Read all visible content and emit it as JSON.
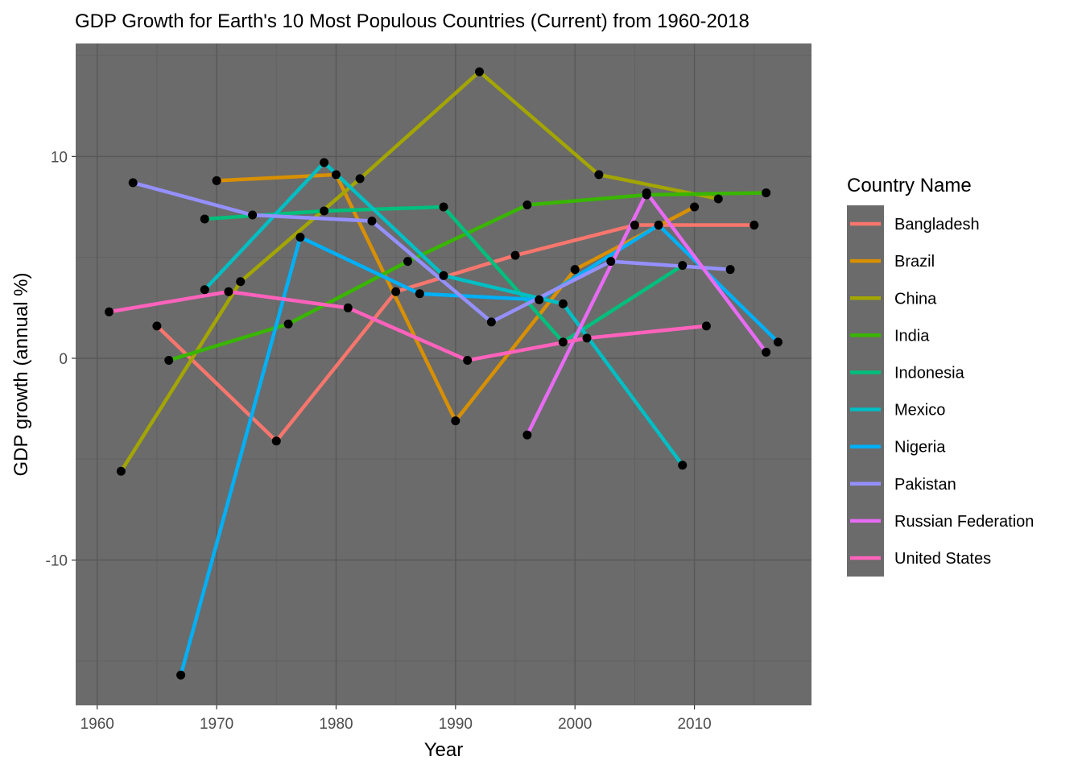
{
  "chart_data": {
    "type": "line",
    "title": "GDP Growth for Earth's 10 Most Populous Countries (Current) from 1960-2018",
    "xlabel": "Year",
    "ylabel": "GDP growth (annual %)",
    "xlim": [
      1958.2,
      2019.8
    ],
    "ylim": [
      -17.2,
      15.6
    ],
    "x_ticks": [
      1960,
      1970,
      1980,
      1990,
      2000,
      2010
    ],
    "y_ticks": [
      -10,
      0,
      10
    ],
    "grid": true,
    "point_color": "#000000",
    "panel_background": "#6b6b6b",
    "grid_major_color": "#595959",
    "grid_minor_color": "#626262",
    "legend": {
      "title": "Country Name",
      "position": "right",
      "key_background": "#6b6b6b"
    },
    "series": [
      {
        "name": "Bangladesh",
        "color": "#F8766D",
        "points": [
          [
            1965,
            1.6
          ],
          [
            1975,
            -4.1
          ],
          [
            1985,
            3.3
          ],
          [
            1995,
            5.1
          ],
          [
            2005,
            6.6
          ],
          [
            2015,
            6.6
          ]
        ]
      },
      {
        "name": "Brazil",
        "color": "#D89000",
        "points": [
          [
            1970,
            8.8
          ],
          [
            1980,
            9.1
          ],
          [
            1990,
            -3.1
          ],
          [
            2000,
            4.4
          ],
          [
            2010,
            7.5
          ]
        ]
      },
      {
        "name": "China",
        "color": "#A3A500",
        "points": [
          [
            1962,
            -5.6
          ],
          [
            1972,
            3.8
          ],
          [
            1982,
            8.9
          ],
          [
            1992,
            14.2
          ],
          [
            2002,
            9.1
          ],
          [
            2012,
            7.9
          ]
        ]
      },
      {
        "name": "India",
        "color": "#39B600",
        "points": [
          [
            1966,
            -0.1
          ],
          [
            1976,
            1.7
          ],
          [
            1986,
            4.8
          ],
          [
            1996,
            7.6
          ],
          [
            2006,
            8.1
          ],
          [
            2016,
            8.2
          ]
        ]
      },
      {
        "name": "Indonesia",
        "color": "#00BF7D",
        "points": [
          [
            1969,
            6.9
          ],
          [
            1979,
            7.3
          ],
          [
            1989,
            7.5
          ],
          [
            1999,
            0.8
          ],
          [
            2009,
            4.6
          ]
        ]
      },
      {
        "name": "Mexico",
        "color": "#00BFC4",
        "points": [
          [
            1969,
            3.4
          ],
          [
            1979,
            9.7
          ],
          [
            1989,
            4.1
          ],
          [
            1999,
            2.7
          ],
          [
            2009,
            -5.3
          ]
        ]
      },
      {
        "name": "Nigeria",
        "color": "#00B0F6",
        "points": [
          [
            1967,
            -15.7
          ],
          [
            1977,
            6.0
          ],
          [
            1987,
            3.2
          ],
          [
            1997,
            2.9
          ],
          [
            2007,
            6.6
          ],
          [
            2017,
            0.8
          ]
        ]
      },
      {
        "name": "Pakistan",
        "color": "#9590FF",
        "points": [
          [
            1963,
            8.7
          ],
          [
            1973,
            7.1
          ],
          [
            1983,
            6.8
          ],
          [
            1993,
            1.8
          ],
          [
            2003,
            4.8
          ],
          [
            2013,
            4.4
          ]
        ]
      },
      {
        "name": "Russian Federation",
        "color": "#E76BF3",
        "points": [
          [
            1996,
            -3.8
          ],
          [
            2006,
            8.2
          ],
          [
            2016,
            0.3
          ]
        ]
      },
      {
        "name": "United States",
        "color": "#FF62BC",
        "points": [
          [
            1961,
            2.3
          ],
          [
            1971,
            3.3
          ],
          [
            1981,
            2.5
          ],
          [
            1991,
            -0.1
          ],
          [
            2001,
            1.0
          ],
          [
            2011,
            1.6
          ]
        ]
      }
    ]
  }
}
